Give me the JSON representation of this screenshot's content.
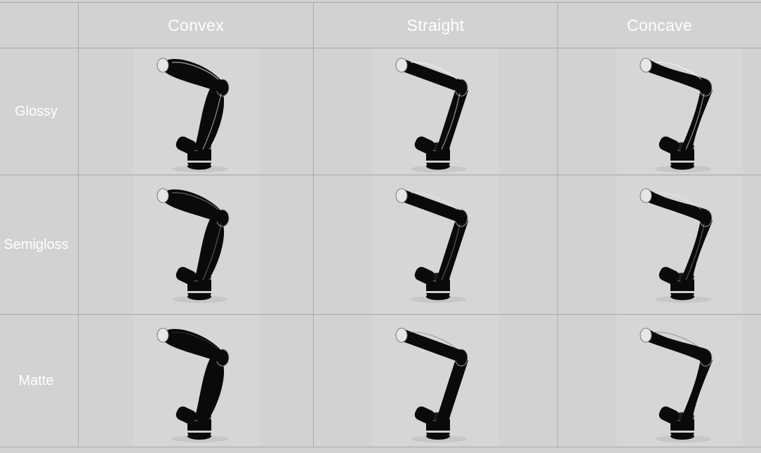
{
  "table": {
    "columns": [
      "Convex",
      "Straight",
      "Concave"
    ],
    "rows": [
      {
        "label": "Glossy",
        "finish": "glossy"
      },
      {
        "label": "Semigloss",
        "finish": "semigloss"
      },
      {
        "label": "Matte",
        "finish": "matte"
      }
    ]
  },
  "colors": {
    "background": "#d2d2d2",
    "grid_line": "#a8a8a8",
    "label_text": "#ffffff",
    "arm": "#0a0a0a"
  },
  "images": [
    [
      "robot-arm-convex-glossy",
      "robot-arm-straight-glossy",
      "robot-arm-concave-glossy"
    ],
    [
      "robot-arm-convex-semigloss",
      "robot-arm-straight-semigloss",
      "robot-arm-concave-semigloss"
    ],
    [
      "robot-arm-convex-matte",
      "robot-arm-straight-matte",
      "robot-arm-concave-matte"
    ]
  ]
}
